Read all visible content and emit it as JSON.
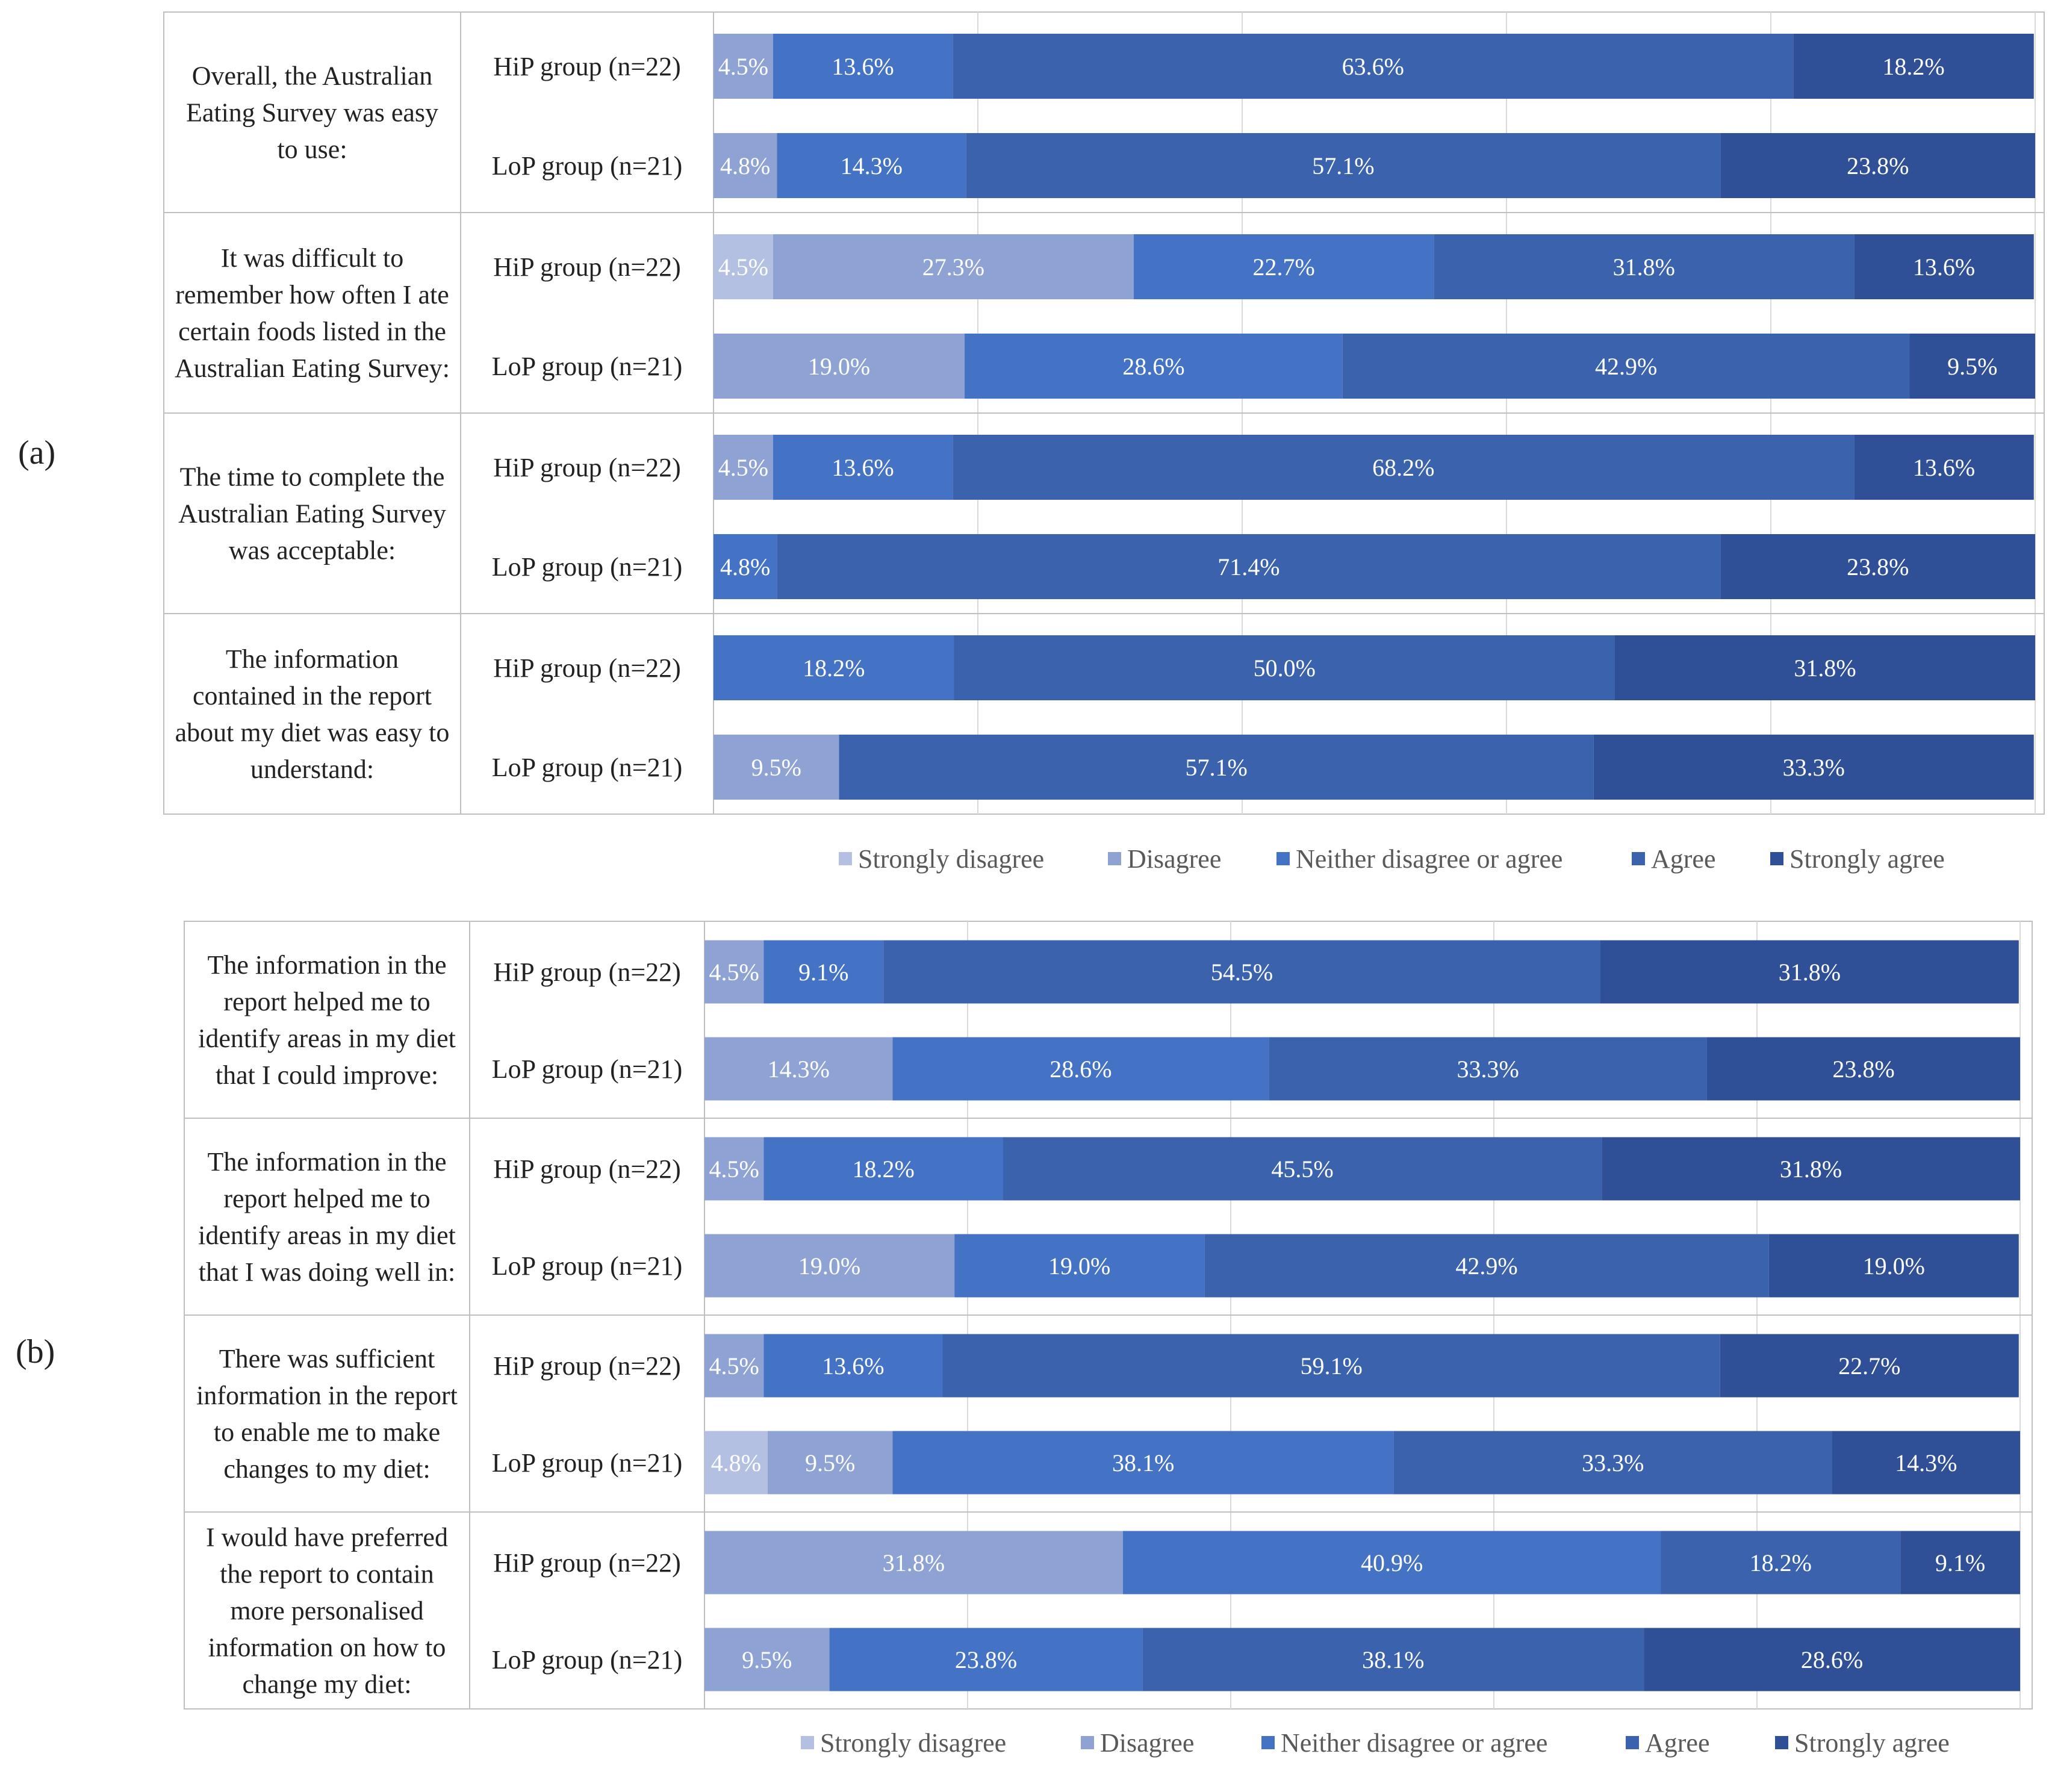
{
  "chart_data": [
    {
      "type": "bar",
      "orientation": "horizontal",
      "stacked": true,
      "panel": "(a)",
      "questions": [
        {
          "text": [
            "Overall, the Australian",
            "Eating Survey was easy",
            "to use:"
          ],
          "rows": [
            {
              "group": "HiP group (n=22)",
              "values": [
                0,
                4.5,
                13.6,
                63.6,
                18.2
              ]
            },
            {
              "group": "LoP group (n=21)",
              "values": [
                0,
                4.8,
                14.3,
                57.1,
                23.8
              ]
            }
          ]
        },
        {
          "text": [
            "It was difficult to",
            "remember how often I ate",
            "certain foods listed in the",
            "Australian Eating Survey:"
          ],
          "rows": [
            {
              "group": "HiP group (n=22)",
              "values": [
                4.5,
                27.3,
                22.7,
                31.8,
                13.6
              ]
            },
            {
              "group": "LoP group (n=21)",
              "values": [
                0,
                19.0,
                28.6,
                42.9,
                9.5
              ]
            }
          ]
        },
        {
          "text": [
            "The time to complete the",
            "Australian Eating Survey",
            "was acceptable:"
          ],
          "rows": [
            {
              "group": "HiP group (n=22)",
              "values": [
                0,
                4.5,
                13.6,
                68.2,
                13.6
              ]
            },
            {
              "group": "LoP group (n=21)",
              "values": [
                0,
                0,
                4.8,
                71.4,
                23.8
              ]
            }
          ]
        },
        {
          "text": [
            "The information",
            "contained in the report",
            "about my diet was easy to",
            "understand:"
          ],
          "rows": [
            {
              "group": "HiP group (n=22)",
              "values": [
                0,
                0,
                18.2,
                50.0,
                31.8
              ]
            },
            {
              "group": "LoP group (n=21)",
              "values": [
                0,
                9.5,
                0,
                57.1,
                33.3
              ]
            }
          ]
        }
      ],
      "xlim": [
        0,
        100
      ],
      "legend": [
        "Strongly disagree",
        "Disagree",
        "Neither disagree or agree",
        "Agree",
        "Strongly agree"
      ],
      "legend_position": "bottom",
      "grid": true
    },
    {
      "type": "bar",
      "orientation": "horizontal",
      "stacked": true,
      "panel": "(b)",
      "questions": [
        {
          "text": [
            "The information in the",
            "report helped me to",
            "identify areas in my diet",
            "that I could improve:"
          ],
          "rows": [
            {
              "group": "HiP group (n=22)",
              "values": [
                0,
                4.5,
                9.1,
                54.5,
                31.8
              ]
            },
            {
              "group": "LoP group (n=21)",
              "values": [
                0,
                14.3,
                28.6,
                33.3,
                23.8
              ]
            }
          ]
        },
        {
          "text": [
            "The information in the",
            "report helped me to",
            "identify areas in my diet",
            "that I was doing well in:"
          ],
          "rows": [
            {
              "group": "HiP group (n=22)",
              "values": [
                0,
                4.5,
                18.2,
                45.5,
                31.8
              ]
            },
            {
              "group": "LoP group (n=21)",
              "values": [
                0,
                19.0,
                19.0,
                42.9,
                19.0
              ]
            }
          ]
        },
        {
          "text": [
            "There was sufficient",
            "information in the report",
            "to enable me to make",
            "changes to my diet:"
          ],
          "rows": [
            {
              "group": "HiP group (n=22)",
              "values": [
                0,
                4.5,
                13.6,
                59.1,
                22.7
              ]
            },
            {
              "group": "LoP group (n=21)",
              "values": [
                4.8,
                9.5,
                38.1,
                33.3,
                14.3
              ]
            }
          ]
        },
        {
          "text": [
            "I would have preferred",
            "the report to contain",
            "more personalised",
            "information on how to",
            "change my diet:"
          ],
          "rows": [
            {
              "group": "HiP group (n=22)",
              "values": [
                0,
                31.8,
                40.9,
                18.2,
                9.1
              ]
            },
            {
              "group": "LoP group (n=21)",
              "values": [
                0,
                9.5,
                23.8,
                38.1,
                28.6
              ]
            }
          ]
        }
      ],
      "xlim": [
        0,
        100
      ],
      "legend": [
        "Strongly disagree",
        "Disagree",
        "Neither disagree or agree",
        "Agree",
        "Strongly agree"
      ],
      "legend_position": "bottom",
      "grid": true
    }
  ],
  "colors": {
    "strongly_disagree": "#b4c0e2",
    "disagree": "#8fa2d4",
    "neither": "#4472c4",
    "agree": "#3b62ad",
    "strongly_agree": "#2f5096",
    "grid": "#d9d9d9",
    "border": "#bfbfbf"
  }
}
